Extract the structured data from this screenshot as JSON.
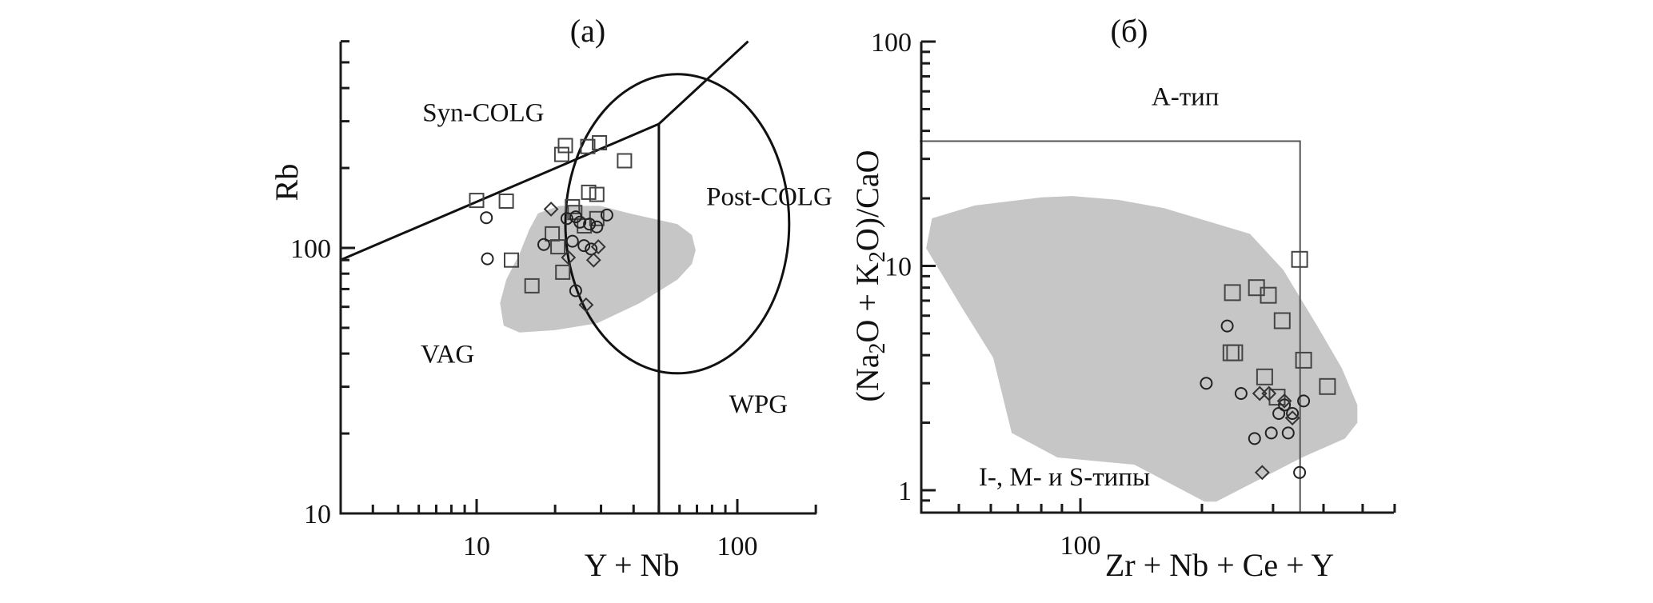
{
  "chart_data": [
    {
      "type": "scatter",
      "panel_label": "(a)",
      "title": "(a)",
      "xlabel": "Y + Nb",
      "ylabel": "Rb",
      "xscale": "log",
      "yscale": "log",
      "xlim": [
        3,
        200
      ],
      "ylim": [
        10,
        600
      ],
      "xticks": [
        {
          "value": 10,
          "label": "10"
        },
        {
          "value": 100,
          "label": "100"
        }
      ],
      "xminor": [
        4,
        5,
        6,
        7,
        8,
        9,
        20,
        30,
        40,
        50,
        60,
        70,
        80,
        90,
        200
      ],
      "yticks": [
        {
          "value": 10,
          "label": "10"
        },
        {
          "value": 100,
          "label": "100"
        }
      ],
      "yminor": [
        20,
        30,
        40,
        50,
        60,
        70,
        80,
        90,
        200,
        300,
        400,
        500,
        600
      ],
      "grid": false,
      "regions": [
        {
          "label": "Syn-COLG",
          "at": [
            6.2,
            300
          ]
        },
        {
          "label": "Post-COLG",
          "at": [
            76,
            145
          ]
        },
        {
          "label": "VAG",
          "at": [
            6.1,
            37
          ]
        },
        {
          "label": "WPG",
          "at": [
            93,
            24
          ]
        }
      ],
      "boundaries": [
        {
          "name": "syn-colg-vag-line",
          "points": [
            [
              3,
              90
            ],
            [
              50,
              293
            ],
            [
              110,
              600
            ]
          ]
        },
        {
          "name": "wpg-vertical",
          "points": [
            [
              50,
              10
            ],
            [
              50,
              293
            ]
          ]
        }
      ],
      "ellipse": {
        "name": "post-colg-field",
        "center": [
          58.9,
          123
        ],
        "x_range": [
          21.9,
          158
        ],
        "y_range": [
          33.7,
          451
        ]
      },
      "shaded_field": [
        [
          15.9,
          117
        ],
        [
          17.2,
          135
        ],
        [
          20.8,
          144
        ],
        [
          29.7,
          144
        ],
        [
          38.5,
          135
        ],
        [
          58.9,
          123
        ],
        [
          66.9,
          112
        ],
        [
          69.2,
          98
        ],
        [
          66.9,
          87
        ],
        [
          58.9,
          76
        ],
        [
          42.3,
          62
        ],
        [
          29.0,
          52
        ],
        [
          19.9,
          49
        ],
        [
          14.6,
          48
        ],
        [
          12.7,
          51
        ],
        [
          12.3,
          62
        ],
        [
          13.0,
          76
        ],
        [
          14.6,
          95
        ]
      ],
      "series": [
        {
          "name": "squares",
          "marker": "square",
          "points": [
            [
              21.9,
              243
            ],
            [
              21.2,
              225
            ],
            [
              26.7,
              241
            ],
            [
              29.6,
              249
            ],
            [
              36.9,
              213
            ],
            [
              26.9,
              162
            ],
            [
              28.9,
              159
            ],
            [
              10.0,
              151
            ],
            [
              13.0,
              150
            ],
            [
              23.3,
              143
            ],
            [
              23.8,
              136
            ],
            [
              28.9,
              129
            ],
            [
              25.9,
              121
            ],
            [
              19.5,
              113
            ],
            [
              20.5,
              101
            ],
            [
              13.6,
              90
            ],
            [
              21.4,
              81
            ],
            [
              16.3,
              72
            ]
          ]
        },
        {
          "name": "circles",
          "marker": "circle",
          "points": [
            [
              10.9,
              130
            ],
            [
              22.2,
              129
            ],
            [
              24.0,
              131
            ],
            [
              24.9,
              125
            ],
            [
              27.1,
              123
            ],
            [
              28.9,
              120
            ],
            [
              31.6,
              133
            ],
            [
              23.3,
              106
            ],
            [
              18.1,
              103
            ],
            [
              25.8,
              102
            ],
            [
              27.5,
              99
            ],
            [
              11.0,
              91
            ],
            [
              24.0,
              69
            ]
          ]
        },
        {
          "name": "diamonds",
          "marker": "diamond",
          "points": [
            [
              19.3,
              140
            ],
            [
              29.3,
              101
            ],
            [
              22.5,
              92
            ],
            [
              28.1,
              90
            ],
            [
              26.3,
              61
            ]
          ]
        }
      ]
    },
    {
      "type": "scatter",
      "panel_label": "(б)",
      "title": "(б)",
      "xlabel": "Zr + Nb + Ce + Y",
      "ylabel_parts": [
        "(Na",
        "2",
        "O + K",
        "2",
        "O)/CaO"
      ],
      "ylabel": "(Na2O + K2O)/CaO",
      "xscale": "log",
      "yscale": "log",
      "xlim": [
        40,
        600
      ],
      "ylim": [
        0.8,
        100
      ],
      "xticks": [
        {
          "value": 100,
          "label": "100"
        }
      ],
      "xminor": [
        50,
        60,
        70,
        80,
        90,
        200,
        300,
        400,
        500,
        600
      ],
      "yticks": [
        {
          "value": 1,
          "label": "1"
        },
        {
          "value": 10,
          "label": "10"
        },
        {
          "value": 100,
          "label": "100"
        }
      ],
      "yminor": [
        0.9,
        2,
        3,
        4,
        5,
        6,
        7,
        8,
        9,
        20,
        30,
        40,
        50,
        60,
        70,
        80,
        90
      ],
      "grid": false,
      "regions": [
        {
          "label": "A-тип",
          "at": [
            150,
            52
          ]
        },
        {
          "label": "I-, M- и S-типы",
          "at": [
            56,
            1.05
          ]
        }
      ],
      "boundaries": [
        {
          "name": "a-type-boundary",
          "points": [
            [
              40,
              36
            ],
            [
              350,
              36
            ],
            [
              350,
              0.8
            ]
          ]
        }
      ],
      "shaded_field": [
        [
          42.9,
          16.3
        ],
        [
          54.8,
          18.6
        ],
        [
          80.3,
          20.2
        ],
        [
          95.5,
          20.5
        ],
        [
          124,
          19.7
        ],
        [
          161,
          18.1
        ],
        [
          263,
          13.9
        ],
        [
          318,
          9.6
        ],
        [
          386,
          5.4
        ],
        [
          444,
          3.5
        ],
        [
          485,
          2.4
        ],
        [
          485,
          2.0
        ],
        [
          452,
          1.7
        ],
        [
          354,
          1.4
        ],
        [
          273,
          1.1
        ],
        [
          217,
          0.89
        ],
        [
          203,
          0.89
        ],
        [
          136,
          1.3
        ],
        [
          87.7,
          1.4
        ],
        [
          67.6,
          1.8
        ],
        [
          60.8,
          3.9
        ],
        [
          51.2,
          6.4
        ],
        [
          41.5,
          12.0
        ]
      ],
      "series": [
        {
          "name": "squares",
          "marker": "square",
          "points": [
            [
              349,
              10.7
            ],
            [
              238,
              7.6
            ],
            [
              273,
              8.0
            ],
            [
              292,
              7.4
            ],
            [
              316,
              5.7
            ],
            [
              236,
              4.1
            ],
            [
              241,
              4.1
            ],
            [
              357,
              3.8
            ],
            [
              286,
              3.2
            ],
            [
              409,
              2.9
            ],
            [
              307,
              2.6
            ]
          ]
        },
        {
          "name": "circles",
          "marker": "circle",
          "points": [
            [
              231,
              5.4
            ],
            [
              205,
              3.0
            ],
            [
              250,
              2.7
            ],
            [
              357,
              2.5
            ],
            [
              320,
              2.4
            ],
            [
              310,
              2.2
            ],
            [
              335,
              2.2
            ],
            [
              327,
              1.8
            ],
            [
              297,
              1.8
            ],
            [
              270,
              1.7
            ],
            [
              349,
              1.2
            ]
          ]
        },
        {
          "name": "diamonds",
          "marker": "diamond",
          "points": [
            [
              278,
              2.7
            ],
            [
              293,
              2.7
            ],
            [
              320,
              2.5
            ],
            [
              335,
              2.1
            ],
            [
              282,
              1.2
            ]
          ]
        }
      ]
    }
  ]
}
